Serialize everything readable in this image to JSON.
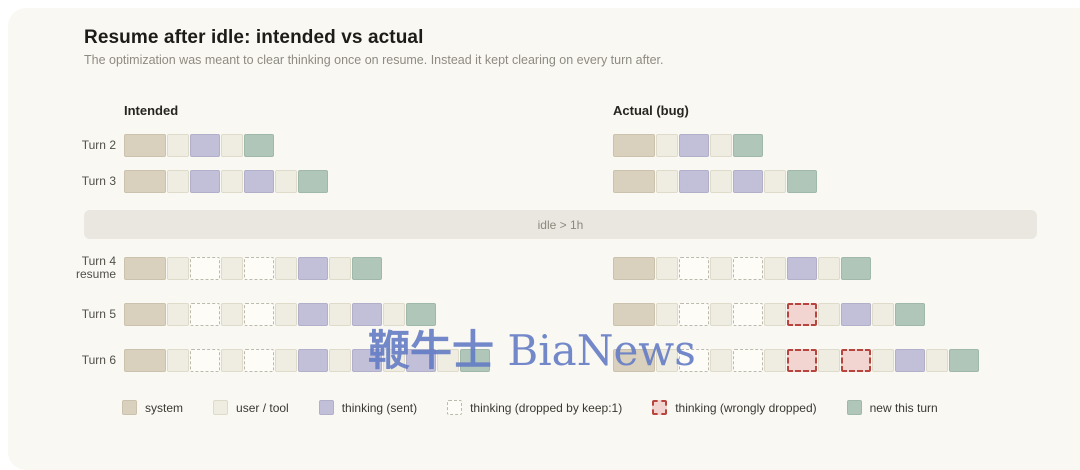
{
  "header": {
    "title": "Resume after idle: intended vs actual",
    "subtitle": "The optimization was meant to clear thinking once on resume. Instead it kept clearing on every turn after."
  },
  "columns": {
    "intended_label": "Intended",
    "actual_label": "Actual (bug)"
  },
  "idle_banner": {
    "text": "idle > 1h"
  },
  "watermark": {
    "cjk": "鞭牛士",
    "latin": " BiaNews"
  },
  "block_types": {
    "S": "system",
    "U": "user / tool",
    "P": "thinking (sent)",
    "D": "thinking (dropped by keep:1)",
    "R": "thinking (wrongly dropped)",
    "G": "new this turn"
  },
  "colors": {
    "background": "#faf8f3",
    "system": "#d9d1bd",
    "user_tool": "#efede1",
    "thinking_sent": "#c2c0d9",
    "dropped_fill": "#fdfcf7",
    "dropped_border": "#bcbaae",
    "wrongly_dropped_fill": "#f2d4d1",
    "wrongly_dropped_border": "#b8443e",
    "new_this_turn": "#b0c6b9",
    "idle_band": "#e9e7e0",
    "watermark": "#637bc4"
  },
  "rows_above_idle": [
    {
      "label": "Turn 2",
      "intended": [
        "S",
        "U",
        "P",
        "U",
        "G"
      ],
      "actual": [
        "S",
        "U",
        "P",
        "U",
        "G"
      ]
    },
    {
      "label": "Turn 3",
      "intended": [
        "S",
        "U",
        "P",
        "U",
        "P",
        "U",
        "G"
      ],
      "actual": [
        "S",
        "U",
        "P",
        "U",
        "P",
        "U",
        "G"
      ]
    }
  ],
  "rows_below_idle": [
    {
      "label": "Turn 4\nresume",
      "intended": [
        "S",
        "U",
        "D",
        "U",
        "D",
        "U",
        "P",
        "U",
        "G"
      ],
      "actual": [
        "S",
        "U",
        "D",
        "U",
        "D",
        "U",
        "P",
        "U",
        "G"
      ]
    },
    {
      "label": "Turn 5",
      "intended": [
        "S",
        "U",
        "D",
        "U",
        "D",
        "U",
        "P",
        "U",
        "P",
        "U",
        "G"
      ],
      "actual": [
        "S",
        "U",
        "D",
        "U",
        "D",
        "U",
        "R",
        "U",
        "P",
        "U",
        "G"
      ]
    },
    {
      "label": "Turn 6",
      "intended": [
        "S",
        "U",
        "D",
        "U",
        "D",
        "U",
        "P",
        "U",
        "P",
        "U",
        "P",
        "U",
        "G"
      ],
      "actual": [
        "S",
        "U",
        "D",
        "U",
        "D",
        "U",
        "R",
        "U",
        "R",
        "U",
        "P",
        "U",
        "G"
      ]
    }
  ],
  "legend": [
    {
      "type": "S",
      "label": "system"
    },
    {
      "type": "U",
      "label": "user / tool"
    },
    {
      "type": "P",
      "label": "thinking (sent)"
    },
    {
      "type": "D",
      "label": "thinking (dropped by keep:1)"
    },
    {
      "type": "R",
      "label": "thinking (wrongly dropped)"
    },
    {
      "type": "G",
      "label": "new this turn"
    }
  ]
}
